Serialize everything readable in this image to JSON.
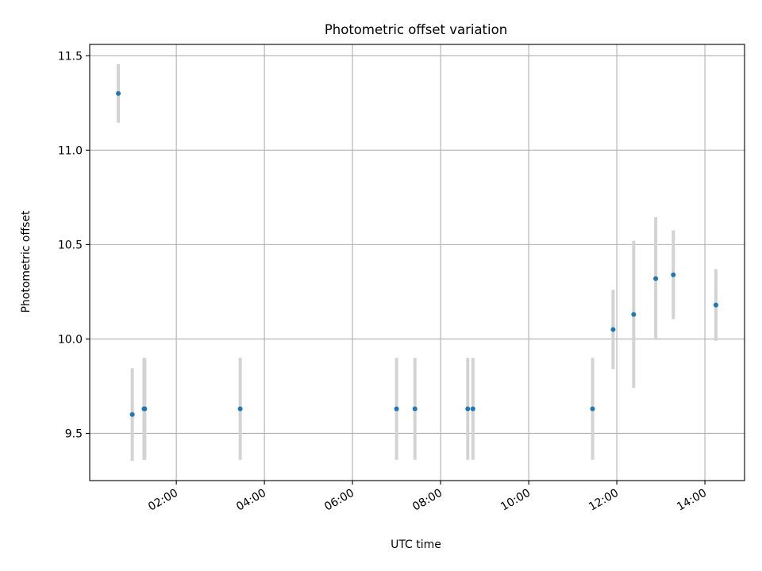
{
  "chart_data": {
    "type": "scatter",
    "title": "Photometric offset variation",
    "xlabel": "UTC time",
    "ylabel": "Photometric offset",
    "x_ticks": [
      "02:00",
      "04:00",
      "06:00",
      "08:00",
      "10:00",
      "12:00",
      "14:00"
    ],
    "y_ticks": [
      "9.5",
      "10.0",
      "10.5",
      "11.0",
      "11.5"
    ],
    "xlim": [
      "00:02",
      "14:54"
    ],
    "ylim": [
      9.25,
      11.56
    ],
    "grid": true,
    "legend": "none",
    "colors": {
      "point": "#1f77b4",
      "errorbar": "#d3d3d3",
      "grid": "#b0b0b0"
    },
    "points": [
      {
        "x": "00:41",
        "y": 11.3,
        "err": 0.155
      },
      {
        "x": "01:00",
        "y": 9.6,
        "err": 0.245
      },
      {
        "x": "01:16",
        "y": 9.63,
        "err": 0.27
      },
      {
        "x": "01:17",
        "y": 9.63,
        "err": 0.27
      },
      {
        "x": "03:27",
        "y": 9.63,
        "err": 0.27
      },
      {
        "x": "07:00",
        "y": 9.63,
        "err": 0.27
      },
      {
        "x": "07:25",
        "y": 9.63,
        "err": 0.27
      },
      {
        "x": "08:37",
        "y": 9.63,
        "err": 0.27
      },
      {
        "x": "08:44",
        "y": 9.63,
        "err": 0.27
      },
      {
        "x": "11:27",
        "y": 9.63,
        "err": 0.27
      },
      {
        "x": "11:55",
        "y": 10.05,
        "err": 0.21
      },
      {
        "x": "12:23",
        "y": 10.13,
        "err": 0.39
      },
      {
        "x": "12:53",
        "y": 10.32,
        "err": 0.325
      },
      {
        "x": "13:17",
        "y": 10.34,
        "err": 0.235
      },
      {
        "x": "14:15",
        "y": 10.18,
        "err": 0.19
      }
    ]
  }
}
